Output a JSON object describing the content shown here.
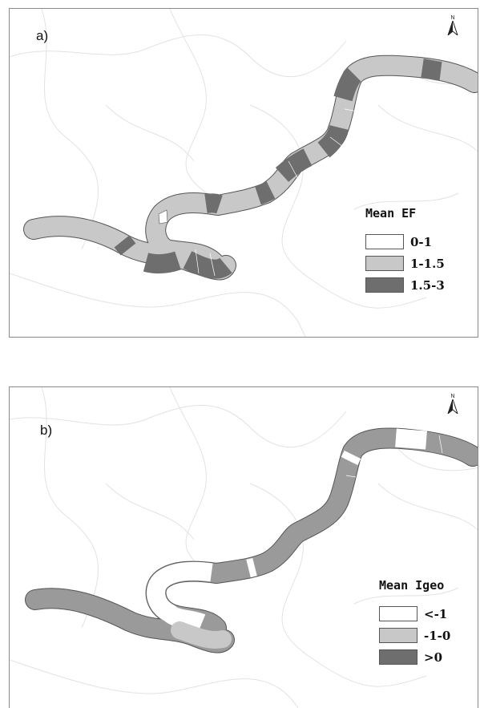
{
  "panels": [
    {
      "label": "a)",
      "north": "N",
      "legend": {
        "title": "Mean EF",
        "items": [
          {
            "label": "0-1",
            "color": "#ffffff"
          },
          {
            "label": "1-1.5",
            "color": "#c8c8c8"
          },
          {
            "label": "1.5-3",
            "color": "#6e6e6e"
          }
        ]
      }
    },
    {
      "label": "b)",
      "north": "N",
      "legend": {
        "title": "Mean Igeo",
        "items": [
          {
            "label": "<-1",
            "color": "#ffffff"
          },
          {
            "label": "-1-0",
            "color": "#c8c8c8"
          },
          {
            "label": ">0",
            "color": "#6e6e6e"
          }
        ]
      }
    }
  ],
  "colors": {
    "light": "#c8c8c8",
    "medium": "#9a9a9a",
    "dark": "#6e6e6e",
    "boundary": "#e2e2e2",
    "river_outline": "#555555"
  }
}
